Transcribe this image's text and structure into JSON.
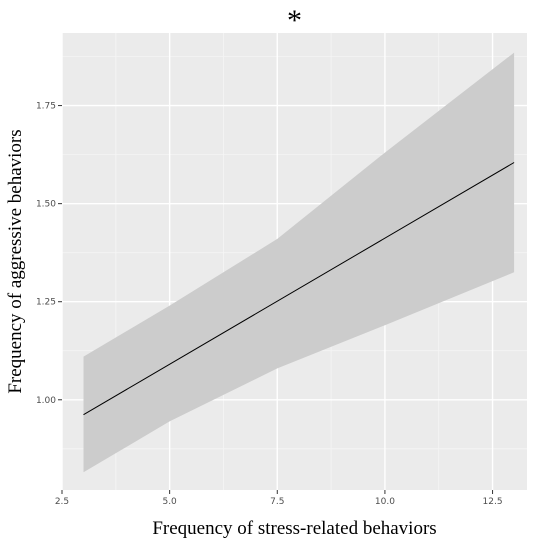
{
  "chart_data": {
    "type": "line",
    "title": "*",
    "xlabel": "Frequency of stress-related behaviors",
    "ylabel": "Frequency of aggressive behaviors",
    "xlim": [
      2.5,
      13.3
    ],
    "ylim": [
      0.77,
      1.935
    ],
    "x_ticks": [
      2.5,
      5.0,
      7.5,
      10.0,
      12.5
    ],
    "x_tick_labels": [
      "2.5",
      "5.0",
      "7.5",
      "10.0",
      "12.5"
    ],
    "y_ticks": [
      1.0,
      1.25,
      1.5,
      1.75
    ],
    "y_tick_labels": [
      "1.00",
      "1.25",
      "1.50",
      "1.75"
    ],
    "grid": true,
    "series": [
      {
        "line": [
          {
            "x": 3.0,
            "y": 0.962
          },
          {
            "x": 13.0,
            "y": 1.605
          }
        ],
        "ribbon": [
          {
            "x": 3.0,
            "lower": 0.815,
            "upper": 1.11
          },
          {
            "x": 5.0,
            "lower": 0.945,
            "upper": 1.24
          },
          {
            "x": 7.5,
            "lower": 1.08,
            "upper": 1.41
          },
          {
            "x": 10.0,
            "lower": 1.19,
            "upper": 1.63
          },
          {
            "x": 13.0,
            "lower": 1.325,
            "upper": 1.885
          }
        ]
      }
    ],
    "colors": {
      "panel": "#ebebeb",
      "grid_major": "#ffffff",
      "grid_minor": "#f5f5f5",
      "ribbon": "#cccccc",
      "line": "#000000"
    }
  }
}
